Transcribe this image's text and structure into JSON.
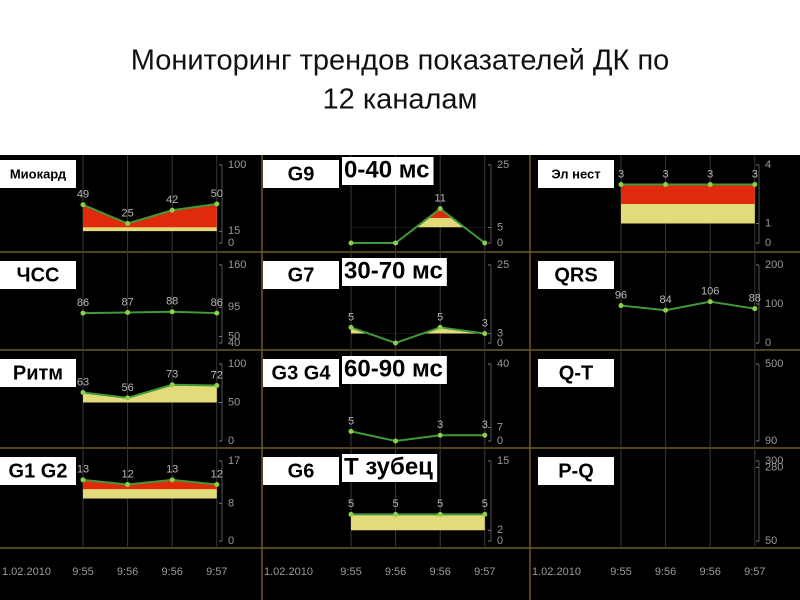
{
  "title_lines": [
    "Мониторинг трендов показателей ДК по",
    "12 каналам"
  ],
  "x_axis": {
    "date_label": "1.02.2010",
    "categories": [
      "9:55",
      "9:56",
      "9:56",
      "9:57"
    ]
  },
  "colors": {
    "line": "#3f9a3a",
    "point": "#8ccf4a",
    "norm": "#e3da7a",
    "alarm": "#e02a0c"
  },
  "chart_data": [
    {
      "type": "line",
      "title": "Миокард",
      "ylim": [
        0,
        100
      ],
      "yticks": [
        100,
        15,
        0
      ],
      "values": [
        49,
        25,
        42,
        50
      ],
      "value_labels": [
        "49",
        "25",
        "42",
        "50"
      ],
      "fill_from": 15,
      "red_above": 20
    },
    {
      "type": "line",
      "title": "ЧСС",
      "ylim": [
        40,
        160
      ],
      "yticks": [
        160,
        95,
        50,
        40
      ],
      "values": [
        86,
        87,
        88,
        86
      ],
      "value_labels": [
        "86",
        "87",
        "88",
        "86"
      ]
    },
    {
      "type": "line",
      "title": "Ритм",
      "ylim": [
        0,
        100
      ],
      "yticks": [
        100,
        50,
        0
      ],
      "values": [
        63,
        56,
        73,
        72
      ],
      "value_labels": [
        "63",
        "56",
        "73",
        "72"
      ],
      "fill_from": 50
    },
    {
      "type": "line",
      "title": "G1 G2",
      "ylim": [
        0,
        17
      ],
      "yticks": [
        17,
        8,
        0
      ],
      "values": [
        13,
        12,
        13,
        12
      ],
      "value_labels": [
        "13",
        "12",
        "13",
        "12"
      ],
      "fill_from": 9,
      "red_above": 11
    },
    {
      "type": "line",
      "title": "G9",
      "annotation": "0-40 мс",
      "ylim": [
        0,
        25
      ],
      "yticks": [
        25,
        5,
        0
      ],
      "values": [
        0,
        0,
        11,
        0
      ],
      "value_labels": [
        null,
        null,
        "11",
        null
      ],
      "fill_from": 5,
      "red_above": 8
    },
    {
      "type": "line",
      "title": "G7",
      "annotation": "30-70 мс",
      "ylim": [
        0,
        25
      ],
      "yticks": [
        25,
        3,
        0
      ],
      "values": [
        5,
        0,
        5,
        3
      ],
      "value_labels": [
        "5",
        null,
        "5",
        "3"
      ],
      "fill_from": 3
    },
    {
      "type": "line",
      "title": "G3 G4",
      "annotation": "60-90 мс",
      "ylim": [
        0,
        40
      ],
      "yticks": [
        40,
        7,
        0
      ],
      "values": [
        5,
        0,
        3,
        3
      ],
      "value_labels": [
        "5",
        null,
        "3",
        "3"
      ]
    },
    {
      "type": "line",
      "title": "G6",
      "annotation": "Т зубец",
      "ylim": [
        0,
        15
      ],
      "yticks": [
        15,
        2,
        0
      ],
      "values": [
        5,
        5,
        5,
        5
      ],
      "value_labels": [
        "5",
        "5",
        "5",
        "5"
      ],
      "fill_from": 2
    },
    {
      "type": "line",
      "title": "Эл нест",
      "ylim": [
        0,
        4
      ],
      "yticks": [
        4,
        1,
        0
      ],
      "values": [
        3,
        3,
        3,
        3
      ],
      "value_labels": [
        "3",
        "3",
        "3",
        "3"
      ],
      "fill_from": 1,
      "red_above": 2
    },
    {
      "type": "line",
      "title": "QRS",
      "ylim": [
        0,
        200
      ],
      "yticks": [
        200,
        100,
        0
      ],
      "values": [
        96,
        84,
        106,
        88
      ],
      "value_labels": [
        "96",
        "84",
        "106",
        "88"
      ]
    },
    {
      "type": "line",
      "title": "Q-T",
      "ylim": [
        90,
        500
      ],
      "yticks": [
        500,
        90
      ],
      "values": []
    },
    {
      "type": "line",
      "title": "P-Q",
      "ylim": [
        50,
        300
      ],
      "yticks": [
        300,
        280,
        50
      ],
      "values": []
    }
  ]
}
